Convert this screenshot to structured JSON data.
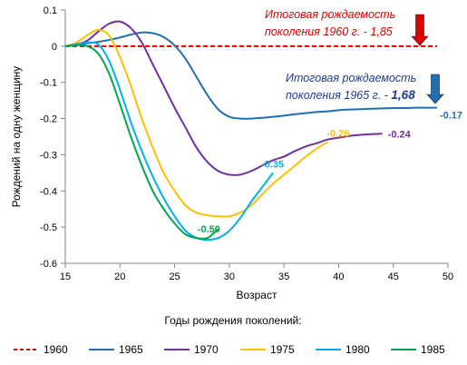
{
  "chart_data": {
    "type": "line",
    "xlabel": "Возраст",
    "ylabel": "Рождений на одну женщину",
    "xlim": [
      15,
      50
    ],
    "ylim": [
      -0.6,
      0.1
    ],
    "xticks": [
      "15",
      "20",
      "25",
      "30",
      "35",
      "40",
      "45",
      "50"
    ],
    "yticks": [
      "0.1",
      "0",
      "-0.1",
      "-0.2",
      "-0.3",
      "-0.4",
      "-0.5",
      "-0.6"
    ],
    "legend_title": "Годы рождения поколений:",
    "legend_position": "bottom",
    "grid": false,
    "series": [
      {
        "name": "1960",
        "color": "#e00000",
        "dashed": true,
        "x": [
          15,
          49
        ],
        "y": [
          0,
          0
        ]
      },
      {
        "name": "1965",
        "color": "#1f6fb5",
        "dashed": false,
        "x": [
          15,
          16,
          17,
          18,
          19,
          20,
          21,
          22,
          23,
          24,
          25,
          26,
          27,
          28,
          29,
          30,
          31,
          32,
          33,
          34,
          35,
          36,
          37,
          38,
          39,
          40,
          41,
          42,
          43,
          44,
          45,
          46,
          47,
          48,
          49
        ],
        "y": [
          0,
          0.003,
          0.008,
          0.012,
          0.017,
          0.024,
          0.032,
          0.038,
          0.036,
          0.025,
          0.002,
          -0.035,
          -0.085,
          -0.135,
          -0.175,
          -0.195,
          -0.2,
          -0.2,
          -0.198,
          -0.195,
          -0.192,
          -0.188,
          -0.185,
          -0.182,
          -0.18,
          -0.177,
          -0.175,
          -0.174,
          -0.173,
          -0.172,
          -0.171,
          -0.171,
          -0.17,
          -0.17,
          -0.17
        ]
      },
      {
        "name": "1970",
        "color": "#7030a0",
        "dashed": false,
        "x": [
          15,
          16,
          17,
          18,
          19,
          20,
          21,
          22,
          23,
          24,
          25,
          26,
          27,
          28,
          29,
          30,
          31,
          32,
          33,
          34,
          35,
          36,
          37,
          38,
          39,
          40,
          41,
          42,
          43,
          44
        ],
        "y": [
          0,
          0.005,
          0.015,
          0.04,
          0.062,
          0.068,
          0.05,
          0.01,
          -0.05,
          -0.11,
          -0.17,
          -0.225,
          -0.28,
          -0.32,
          -0.345,
          -0.355,
          -0.355,
          -0.345,
          -0.33,
          -0.315,
          -0.305,
          -0.29,
          -0.277,
          -0.268,
          -0.258,
          -0.253,
          -0.248,
          -0.245,
          -0.243,
          -0.242
        ]
      },
      {
        "name": "1975",
        "color": "#ffc000",
        "dashed": false,
        "x": [
          15,
          16,
          17,
          18,
          19,
          20,
          21,
          22,
          23,
          24,
          25,
          26,
          27,
          28,
          29,
          30,
          31,
          32,
          33,
          34,
          35,
          36,
          37,
          38,
          39
        ],
        "y": [
          0,
          0.01,
          0.03,
          0.045,
          0.03,
          -0.03,
          -0.11,
          -0.2,
          -0.28,
          -0.35,
          -0.4,
          -0.44,
          -0.46,
          -0.467,
          -0.47,
          -0.47,
          -0.46,
          -0.44,
          -0.41,
          -0.38,
          -0.355,
          -0.33,
          -0.305,
          -0.283,
          -0.265
        ]
      },
      {
        "name": "1980",
        "color": "#00b0f0",
        "dashed": false,
        "x": [
          15,
          16,
          17,
          18,
          19,
          20,
          21,
          22,
          23,
          24,
          25,
          26,
          27,
          28,
          29,
          30,
          31,
          32,
          33,
          34
        ],
        "y": [
          0,
          0.005,
          0.01,
          0.005,
          -0.04,
          -0.12,
          -0.21,
          -0.29,
          -0.36,
          -0.42,
          -0.47,
          -0.51,
          -0.53,
          -0.535,
          -0.53,
          -0.51,
          -0.475,
          -0.43,
          -0.39,
          -0.35
        ]
      },
      {
        "name": "1985",
        "color": "#00a650",
        "dashed": false,
        "x": [
          15,
          16,
          17,
          18,
          19,
          20,
          21,
          22,
          23,
          24,
          25,
          26,
          27,
          28,
          29
        ],
        "y": [
          0,
          0.003,
          0,
          -0.02,
          -0.075,
          -0.16,
          -0.25,
          -0.33,
          -0.4,
          -0.45,
          -0.49,
          -0.52,
          -0.53,
          -0.53,
          -0.505
        ]
      }
    ],
    "data_labels": [
      {
        "series": "1965",
        "text": "-0.17",
        "x": 49,
        "y": -0.17
      },
      {
        "series": "1970",
        "text": "-0.24",
        "x": 44,
        "y": -0.242
      },
      {
        "series": "1975",
        "text": "-0.26",
        "x": 39,
        "y": -0.265
      },
      {
        "series": "1980",
        "text": "-0.35",
        "x": 34,
        "y": -0.35
      },
      {
        "series": "1985",
        "text": "-0.50",
        "x": 29,
        "y": -0.505
      }
    ],
    "annotations": [
      {
        "series": "1960",
        "color": "#e00000",
        "arrow_color": "#e00000",
        "lines": [
          "Итоговая рождаемость",
          "поколения 1960 г. - 1,85"
        ],
        "bold_value": ""
      },
      {
        "series": "1965",
        "color": "#1f3a93",
        "arrow_color": "#1f6fb5",
        "lines": [
          "Итоговая рождаемость",
          "поколения 1965 г. - "
        ],
        "bold_value": "1,68"
      }
    ]
  }
}
